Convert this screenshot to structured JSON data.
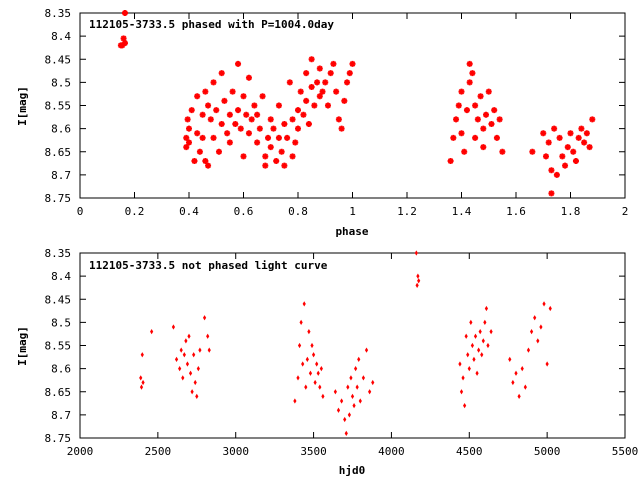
{
  "chart_data": [
    {
      "type": "scatter",
      "title": "112105-3733.5 phased with P=1004.0day",
      "xlabel": "phase",
      "ylabel": "I[mag]",
      "xlim": [
        0,
        2
      ],
      "ylim": [
        8.75,
        8.35
      ],
      "y_inverted": true,
      "x_ticks": [
        "0",
        "0.2",
        "0.4",
        "0.6",
        "0.8",
        "1",
        "1.2",
        "1.4",
        "1.6",
        "1.8",
        "2"
      ],
      "y_ticks": [
        "8.35",
        "8.4",
        "8.45",
        "8.5",
        "8.55",
        "8.6",
        "8.65",
        "8.7",
        "8.75"
      ],
      "marker_color": "#ff0000",
      "series": [
        {
          "x": [
            0.15,
            0.155,
            0.16,
            0.165,
            0.165,
            0.39,
            0.39,
            0.395,
            0.4,
            0.4,
            0.41,
            0.42,
            0.43,
            0.43,
            0.44,
            0.45,
            0.45,
            0.46,
            0.46,
            0.47,
            0.47,
            0.48,
            0.49,
            0.49,
            0.5,
            0.51,
            0.52,
            0.52,
            0.53,
            0.54,
            0.55,
            0.55,
            0.56,
            0.57,
            0.58,
            0.58,
            0.59,
            0.6,
            0.6,
            0.61,
            0.62,
            0.62,
            0.63,
            0.64,
            0.65,
            0.65,
            0.66,
            0.67,
            0.68,
            0.68,
            0.69,
            0.7,
            0.7,
            0.71,
            0.72,
            0.73,
            0.73,
            0.74,
            0.75,
            0.75,
            0.76,
            0.77,
            0.78,
            0.78,
            0.79,
            0.8,
            0.8,
            0.81,
            0.82,
            0.83,
            0.83,
            0.84,
            0.85,
            0.85,
            0.86,
            0.87,
            0.88,
            0.88,
            0.89,
            0.9,
            0.91,
            0.92,
            0.93,
            0.94,
            0.95,
            0.96,
            0.97,
            0.98,
            0.99,
            1.0,
            1.36,
            1.37,
            1.38,
            1.39,
            1.4,
            1.4,
            1.41,
            1.42,
            1.43,
            1.43,
            1.44,
            1.45,
            1.45,
            1.46,
            1.47,
            1.48,
            1.48,
            1.49,
            1.5,
            1.51,
            1.52,
            1.53,
            1.54,
            1.55,
            1.66,
            1.7,
            1.71,
            1.72,
            1.73,
            1.73,
            1.74,
            1.75,
            1.76,
            1.77,
            1.78,
            1.79,
            1.8,
            1.81,
            1.82,
            1.83,
            1.84,
            1.85,
            1.86,
            1.87,
            1.88
          ],
          "y": [
            8.42,
            8.42,
            8.405,
            8.35,
            8.415,
            8.62,
            8.64,
            8.58,
            8.63,
            8.6,
            8.56,
            8.67,
            8.61,
            8.53,
            8.65,
            8.57,
            8.62,
            8.67,
            8.52,
            8.55,
            8.68,
            8.58,
            8.5,
            8.62,
            8.56,
            8.65,
            8.48,
            8.59,
            8.54,
            8.61,
            8.57,
            8.63,
            8.52,
            8.59,
            8.46,
            8.56,
            8.6,
            8.53,
            8.66,
            8.57,
            8.61,
            8.49,
            8.58,
            8.55,
            8.63,
            8.57,
            8.6,
            8.53,
            8.66,
            8.68,
            8.62,
            8.58,
            8.64,
            8.6,
            8.67,
            8.55,
            8.62,
            8.65,
            8.59,
            8.68,
            8.62,
            8.5,
            8.66,
            8.58,
            8.63,
            8.56,
            8.6,
            8.52,
            8.57,
            8.48,
            8.54,
            8.59,
            8.51,
            8.45,
            8.55,
            8.5,
            8.53,
            8.47,
            8.52,
            8.5,
            8.55,
            8.48,
            8.46,
            8.52,
            8.58,
            8.6,
            8.54,
            8.5,
            8.48,
            8.46,
            8.67,
            8.62,
            8.58,
            8.55,
            8.52,
            8.61,
            8.65,
            8.56,
            8.5,
            8.46,
            8.48,
            8.55,
            8.62,
            8.58,
            8.53,
            8.6,
            8.64,
            8.57,
            8.52,
            8.59,
            8.56,
            8.62,
            8.58,
            8.65,
            8.65,
            8.61,
            8.66,
            8.63,
            8.69,
            8.74,
            8.6,
            8.7,
            8.62,
            8.66,
            8.68,
            8.64,
            8.61,
            8.65,
            8.67,
            8.62,
            8.6,
            8.63,
            8.61,
            8.64,
            8.58
          ]
        }
      ]
    },
    {
      "type": "scatter",
      "title": "112105-3733.5 not phased light curve",
      "xlabel": "hjd0",
      "ylabel": "I[mag]",
      "xlim": [
        2000,
        5500
      ],
      "ylim": [
        8.75,
        8.35
      ],
      "y_inverted": true,
      "x_ticks": [
        "2000",
        "2500",
        "3000",
        "3500",
        "4000",
        "4500",
        "5000",
        "5500"
      ],
      "y_ticks": [
        "8.35",
        "8.4",
        "8.45",
        "8.5",
        "8.55",
        "8.6",
        "8.65",
        "8.7",
        "8.75"
      ],
      "marker_color": "#ff0000",
      "series": [
        {
          "x": [
            2390,
            2395,
            2400,
            2405,
            2460,
            2600,
            2620,
            2640,
            2650,
            2660,
            2670,
            2680,
            2690,
            2700,
            2710,
            2720,
            2730,
            2740,
            2750,
            2760,
            2770,
            2800,
            2820,
            2830,
            3380,
            3400,
            3410,
            3420,
            3430,
            3440,
            3450,
            3460,
            3470,
            3480,
            3490,
            3500,
            3510,
            3520,
            3530,
            3540,
            3550,
            3560,
            3640,
            3660,
            3680,
            3700,
            3710,
            3720,
            3730,
            3740,
            3750,
            3760,
            3770,
            3780,
            3790,
            3800,
            3820,
            3840,
            3860,
            3880,
            4160,
            4165,
            4170,
            4175,
            4440,
            4450,
            4460,
            4470,
            4480,
            4490,
            4500,
            4510,
            4520,
            4530,
            4540,
            4550,
            4560,
            4570,
            4580,
            4590,
            4600,
            4610,
            4620,
            4640,
            4760,
            4780,
            4800,
            4820,
            4840,
            4860,
            4880,
            4900,
            4920,
            4940,
            4960,
            4980,
            5000,
            5020
          ],
          "y": [
            8.62,
            8.64,
            8.57,
            8.63,
            8.52,
            8.51,
            8.58,
            8.6,
            8.56,
            8.62,
            8.57,
            8.54,
            8.59,
            8.53,
            8.61,
            8.65,
            8.57,
            8.63,
            8.66,
            8.6,
            8.56,
            8.49,
            8.53,
            8.56,
            8.67,
            8.62,
            8.55,
            8.5,
            8.59,
            8.46,
            8.64,
            8.58,
            8.52,
            8.61,
            8.55,
            8.57,
            8.63,
            8.59,
            8.61,
            8.64,
            8.6,
            8.66,
            8.65,
            8.69,
            8.67,
            8.71,
            8.74,
            8.64,
            8.7,
            8.62,
            8.66,
            8.68,
            8.6,
            8.64,
            8.58,
            8.67,
            8.62,
            8.56,
            8.65,
            8.63,
            8.35,
            8.42,
            8.4,
            8.41,
            8.59,
            8.65,
            8.62,
            8.68,
            8.53,
            8.57,
            8.6,
            8.5,
            8.55,
            8.58,
            8.53,
            8.61,
            8.56,
            8.52,
            8.57,
            8.54,
            8.5,
            8.47,
            8.55,
            8.52,
            8.58,
            8.63,
            8.61,
            8.66,
            8.6,
            8.64,
            8.56,
            8.52,
            8.49,
            8.54,
            8.51,
            8.46,
            8.59,
            8.47
          ]
        }
      ]
    }
  ]
}
